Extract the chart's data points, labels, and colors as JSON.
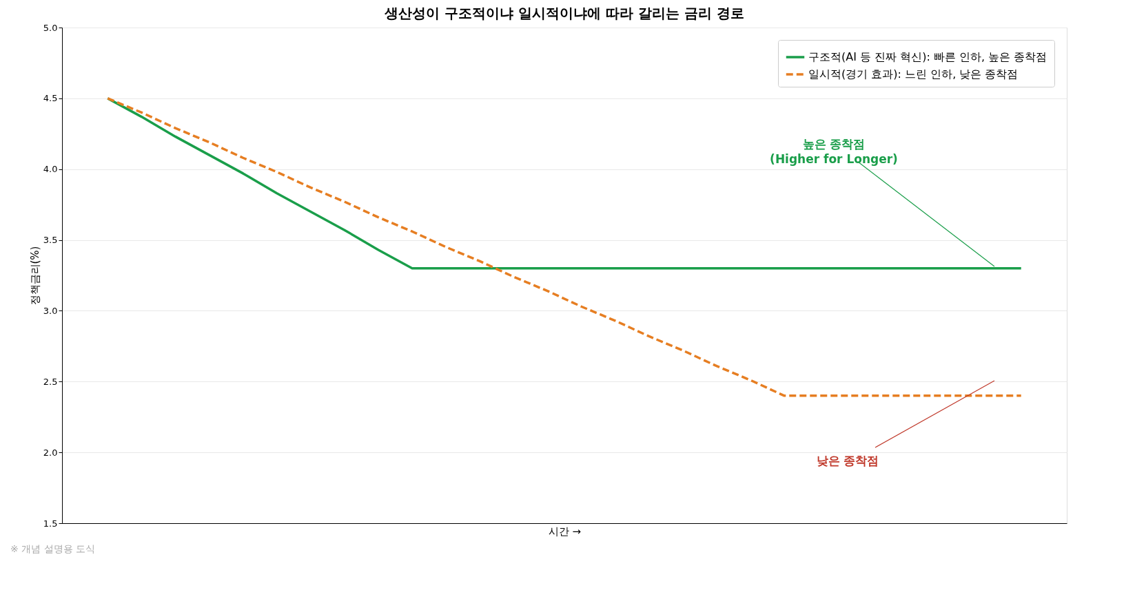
{
  "chart_data": {
    "type": "line",
    "title": "생산성이 구조적이냐 일시적이냐에 따라 갈리는 금리 경로",
    "xlabel": "시간 →",
    "ylabel": "정책금리(%)",
    "categories": [
      null,
      null,
      null,
      null,
      null,
      null,
      null,
      null,
      null,
      null,
      null,
      null,
      null,
      null,
      null,
      null,
      null,
      null,
      null,
      null,
      null,
      null,
      null,
      null,
      null,
      null,
      null,
      null
    ],
    "series": [
      {
        "name": "구조적(AI 등 진짜 혁신): 빠른 인하, 높은 종착점",
        "color": "#1a9e4a",
        "line_style": "solid",
        "values": [
          4.5,
          4.37,
          4.23,
          4.1,
          3.97,
          3.83,
          3.7,
          3.57,
          3.43,
          3.3,
          3.3,
          3.3,
          3.3,
          3.3,
          3.3,
          3.3,
          3.3,
          3.3,
          3.3,
          3.3,
          3.3,
          3.3,
          3.3,
          3.3,
          3.3,
          3.3,
          3.3,
          3.3
        ]
      },
      {
        "name": "일시적(경기 효과): 느린 인하, 낮은 종착점",
        "color": "#e67e22",
        "line_style": "dashed",
        "values": [
          4.5,
          4.4,
          4.29,
          4.19,
          4.08,
          3.98,
          3.87,
          3.77,
          3.66,
          3.56,
          3.45,
          3.35,
          3.24,
          3.14,
          3.03,
          2.93,
          2.82,
          2.72,
          2.61,
          2.51,
          2.4,
          2.4,
          2.4,
          2.4,
          2.4,
          2.4,
          2.4,
          2.4
        ]
      }
    ],
    "ylim": [
      1.5,
      5.0
    ],
    "yticks": [
      1.5,
      {
        "value": 2,
        "label": "2.0"
      },
      2.5,
      {
        "value": 3,
        "label": "3.0"
      },
      3.5,
      {
        "value": 4,
        "label": "4.0"
      },
      4.5,
      {
        "value": 5,
        "label": "5.0"
      }
    ],
    "tick_labels": "y",
    "grid": "y",
    "legend": "top right",
    "marker": "none",
    "annotations": [
      "높은 종착점\n(Higher for Longer)",
      "낮은 종착점",
      "※ 개념 설명용 도식"
    ]
  }
}
